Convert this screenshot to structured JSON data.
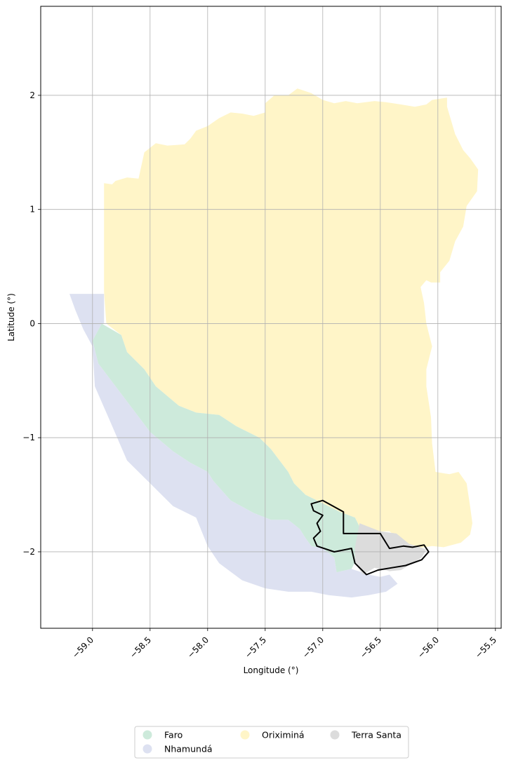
{
  "chart_data": {
    "type": "choropleth-map",
    "xlabel": "Longitude (°)",
    "ylabel": "Latitude (°)",
    "xlim": [
      -59.45,
      -55.45
    ],
    "ylim": [
      -2.67,
      2.78
    ],
    "xticks": [
      -59.0,
      -58.5,
      -58.0,
      -57.5,
      -57.0,
      -56.5,
      -56.0,
      -55.5
    ],
    "xtick_labels": [
      "−59.0",
      "−58.5",
      "−58.0",
      "−57.5",
      "−57.0",
      "−56.5",
      "−56.0",
      "−55.5"
    ],
    "yticks": [
      -2,
      -1,
      0,
      1,
      2
    ],
    "ytick_labels": [
      "−2",
      "−1",
      "0",
      "1",
      "2"
    ],
    "grid": true,
    "legend_position": "bottom-center",
    "legend_columns": 3,
    "highlighted_region_outline": "#000000",
    "regions": [
      {
        "name": "Oriximiná",
        "color": "#fff5c8",
        "polygon": [
          [
            -58.9,
            0.28
          ],
          [
            -58.9,
            1.23
          ],
          [
            -58.83,
            1.22
          ],
          [
            -58.8,
            1.25
          ],
          [
            -58.7,
            1.28
          ],
          [
            -58.6,
            1.27
          ],
          [
            -58.55,
            1.5
          ],
          [
            -58.45,
            1.58
          ],
          [
            -58.35,
            1.56
          ],
          [
            -58.2,
            1.57
          ],
          [
            -58.15,
            1.62
          ],
          [
            -58.1,
            1.69
          ],
          [
            -58.0,
            1.73
          ],
          [
            -57.9,
            1.8
          ],
          [
            -57.8,
            1.85
          ],
          [
            -57.7,
            1.84
          ],
          [
            -57.6,
            1.82
          ],
          [
            -57.5,
            1.85
          ],
          [
            -57.5,
            1.93
          ],
          [
            -57.42,
            2.0
          ],
          [
            -57.3,
            2.0
          ],
          [
            -57.22,
            2.06
          ],
          [
            -57.1,
            2.02
          ],
          [
            -57.0,
            1.96
          ],
          [
            -56.9,
            1.93
          ],
          [
            -56.8,
            1.95
          ],
          [
            -56.7,
            1.93
          ],
          [
            -56.55,
            1.95
          ],
          [
            -56.45,
            1.94
          ],
          [
            -56.32,
            1.92
          ],
          [
            -56.2,
            1.9
          ],
          [
            -56.1,
            1.92
          ],
          [
            -56.05,
            1.96
          ],
          [
            -55.92,
            1.98
          ],
          [
            -55.92,
            1.9
          ],
          [
            -55.85,
            1.66
          ],
          [
            -55.78,
            1.52
          ],
          [
            -55.72,
            1.45
          ],
          [
            -55.65,
            1.35
          ],
          [
            -55.66,
            1.16
          ],
          [
            -55.75,
            1.03
          ],
          [
            -55.78,
            0.85
          ],
          [
            -55.85,
            0.72
          ],
          [
            -55.9,
            0.55
          ],
          [
            -55.98,
            0.45
          ],
          [
            -55.98,
            0.36
          ],
          [
            -56.06,
            0.36
          ],
          [
            -56.1,
            0.38
          ],
          [
            -56.15,
            0.32
          ],
          [
            -56.12,
            0.18
          ],
          [
            -56.1,
            0.0
          ],
          [
            -56.05,
            -0.2
          ],
          [
            -56.1,
            -0.4
          ],
          [
            -56.1,
            -0.55
          ],
          [
            -56.06,
            -0.82
          ],
          [
            -56.05,
            -1.05
          ],
          [
            -56.02,
            -1.3
          ],
          [
            -55.9,
            -1.32
          ],
          [
            -55.82,
            -1.3
          ],
          [
            -55.75,
            -1.4
          ],
          [
            -55.72,
            -1.6
          ],
          [
            -55.7,
            -1.75
          ],
          [
            -55.72,
            -1.85
          ],
          [
            -55.8,
            -1.92
          ],
          [
            -55.95,
            -1.96
          ],
          [
            -56.05,
            -1.95
          ],
          [
            -56.12,
            -1.96
          ],
          [
            -56.2,
            -1.98
          ],
          [
            -56.32,
            -1.9
          ],
          [
            -56.42,
            -1.82
          ],
          [
            -56.55,
            -1.82
          ],
          [
            -56.68,
            -1.78
          ],
          [
            -56.72,
            -1.7
          ],
          [
            -56.85,
            -1.65
          ],
          [
            -56.95,
            -1.6
          ],
          [
            -57.05,
            -1.55
          ],
          [
            -57.15,
            -1.5
          ],
          [
            -57.25,
            -1.4
          ],
          [
            -57.3,
            -1.3
          ],
          [
            -57.45,
            -1.1
          ],
          [
            -57.55,
            -1.0
          ],
          [
            -57.75,
            -0.9
          ],
          [
            -57.9,
            -0.8
          ],
          [
            -58.1,
            -0.78
          ],
          [
            -58.25,
            -0.72
          ],
          [
            -58.45,
            -0.55
          ],
          [
            -58.55,
            -0.4
          ],
          [
            -58.7,
            -0.25
          ],
          [
            -58.75,
            -0.1
          ],
          [
            -58.88,
            0.0
          ],
          [
            -58.9,
            0.28
          ]
        ]
      },
      {
        "name": "Faro",
        "color": "#cdeadb",
        "polygon": [
          [
            -58.92,
            0.0
          ],
          [
            -58.75,
            -0.1
          ],
          [
            -58.7,
            -0.25
          ],
          [
            -58.55,
            -0.4
          ],
          [
            -58.45,
            -0.55
          ],
          [
            -58.25,
            -0.72
          ],
          [
            -58.1,
            -0.78
          ],
          [
            -57.9,
            -0.8
          ],
          [
            -57.75,
            -0.9
          ],
          [
            -57.55,
            -1.0
          ],
          [
            -57.45,
            -1.1
          ],
          [
            -57.3,
            -1.3
          ],
          [
            -57.25,
            -1.4
          ],
          [
            -57.15,
            -1.5
          ],
          [
            -57.05,
            -1.55
          ],
          [
            -56.95,
            -1.6
          ],
          [
            -56.85,
            -1.65
          ],
          [
            -56.72,
            -1.7
          ],
          [
            -56.68,
            -1.78
          ],
          [
            -56.65,
            -1.9
          ],
          [
            -56.7,
            -2.05
          ],
          [
            -56.75,
            -2.15
          ],
          [
            -56.88,
            -2.18
          ],
          [
            -56.9,
            -2.05
          ],
          [
            -57.0,
            -1.97
          ],
          [
            -57.1,
            -1.95
          ],
          [
            -57.15,
            -1.88
          ],
          [
            -57.2,
            -1.8
          ],
          [
            -57.3,
            -1.72
          ],
          [
            -57.45,
            -1.72
          ],
          [
            -57.6,
            -1.66
          ],
          [
            -57.8,
            -1.55
          ],
          [
            -57.95,
            -1.38
          ],
          [
            -58.0,
            -1.3
          ],
          [
            -58.15,
            -1.22
          ],
          [
            -58.3,
            -1.12
          ],
          [
            -58.5,
            -0.95
          ],
          [
            -58.65,
            -0.75
          ],
          [
            -58.8,
            -0.55
          ],
          [
            -58.95,
            -0.35
          ],
          [
            -59.0,
            -0.15
          ],
          [
            -58.92,
            0.0
          ]
        ]
      },
      {
        "name": "Nhamundá",
        "color": "#dde1f1",
        "polygon": [
          [
            -59.2,
            0.26
          ],
          [
            -58.9,
            0.26
          ],
          [
            -58.9,
            0.0
          ],
          [
            -58.92,
            0.0
          ],
          [
            -59.0,
            -0.15
          ],
          [
            -58.95,
            -0.35
          ],
          [
            -58.8,
            -0.55
          ],
          [
            -58.65,
            -0.75
          ],
          [
            -58.5,
            -0.95
          ],
          [
            -58.3,
            -1.12
          ],
          [
            -58.15,
            -1.22
          ],
          [
            -58.0,
            -1.3
          ],
          [
            -57.95,
            -1.38
          ],
          [
            -57.8,
            -1.55
          ],
          [
            -57.6,
            -1.66
          ],
          [
            -57.45,
            -1.72
          ],
          [
            -57.3,
            -1.72
          ],
          [
            -57.2,
            -1.8
          ],
          [
            -57.15,
            -1.88
          ],
          [
            -57.1,
            -1.95
          ],
          [
            -57.0,
            -1.97
          ],
          [
            -56.9,
            -2.05
          ],
          [
            -56.88,
            -2.18
          ],
          [
            -56.75,
            -2.15
          ],
          [
            -56.6,
            -2.2
          ],
          [
            -56.5,
            -2.22
          ],
          [
            -56.42,
            -2.2
          ],
          [
            -56.35,
            -2.28
          ],
          [
            -56.45,
            -2.35
          ],
          [
            -56.6,
            -2.38
          ],
          [
            -56.75,
            -2.4
          ],
          [
            -56.95,
            -2.38
          ],
          [
            -57.1,
            -2.35
          ],
          [
            -57.3,
            -2.35
          ],
          [
            -57.5,
            -2.32
          ],
          [
            -57.7,
            -2.25
          ],
          [
            -57.9,
            -2.1
          ],
          [
            -58.0,
            -1.95
          ],
          [
            -58.1,
            -1.7
          ],
          [
            -58.3,
            -1.6
          ],
          [
            -58.5,
            -1.4
          ],
          [
            -58.7,
            -1.2
          ],
          [
            -58.85,
            -0.85
          ],
          [
            -58.98,
            -0.55
          ],
          [
            -59.0,
            -0.2
          ],
          [
            -59.08,
            -0.05
          ],
          [
            -59.15,
            0.12
          ],
          [
            -59.2,
            0.26
          ]
        ]
      },
      {
        "name": "Terra Santa",
        "color": "#dcdcdc",
        "polygon": [
          [
            -56.68,
            -1.75
          ],
          [
            -56.5,
            -1.82
          ],
          [
            -56.36,
            -1.84
          ],
          [
            -56.25,
            -1.93
          ],
          [
            -56.18,
            -1.95
          ],
          [
            -56.1,
            -1.98
          ],
          [
            -56.14,
            -2.05
          ],
          [
            -56.22,
            -2.1
          ],
          [
            -56.32,
            -2.16
          ],
          [
            -56.42,
            -2.17
          ],
          [
            -56.55,
            -2.14
          ],
          [
            -56.65,
            -2.2
          ],
          [
            -56.72,
            -2.1
          ],
          [
            -56.72,
            -1.96
          ],
          [
            -56.68,
            -1.75
          ]
        ]
      }
    ],
    "outline": [
      [
        -57.1,
        -1.58
      ],
      [
        -57.0,
        -1.55
      ],
      [
        -56.82,
        -1.65
      ],
      [
        -56.82,
        -1.84
      ],
      [
        -56.5,
        -1.84
      ],
      [
        -56.42,
        -1.97
      ],
      [
        -56.3,
        -1.95
      ],
      [
        -56.22,
        -1.96
      ],
      [
        -56.12,
        -1.94
      ],
      [
        -56.08,
        -2.0
      ],
      [
        -56.14,
        -2.07
      ],
      [
        -56.28,
        -2.12
      ],
      [
        -56.4,
        -2.14
      ],
      [
        -56.52,
        -2.16
      ],
      [
        -56.62,
        -2.2
      ],
      [
        -56.72,
        -2.1
      ],
      [
        -56.75,
        -1.97
      ],
      [
        -56.9,
        -2.0
      ],
      [
        -57.05,
        -1.95
      ],
      [
        -57.08,
        -1.88
      ],
      [
        -57.02,
        -1.82
      ],
      [
        -57.05,
        -1.75
      ],
      [
        -57.0,
        -1.68
      ],
      [
        -57.08,
        -1.64
      ],
      [
        -57.1,
        -1.58
      ]
    ]
  }
}
